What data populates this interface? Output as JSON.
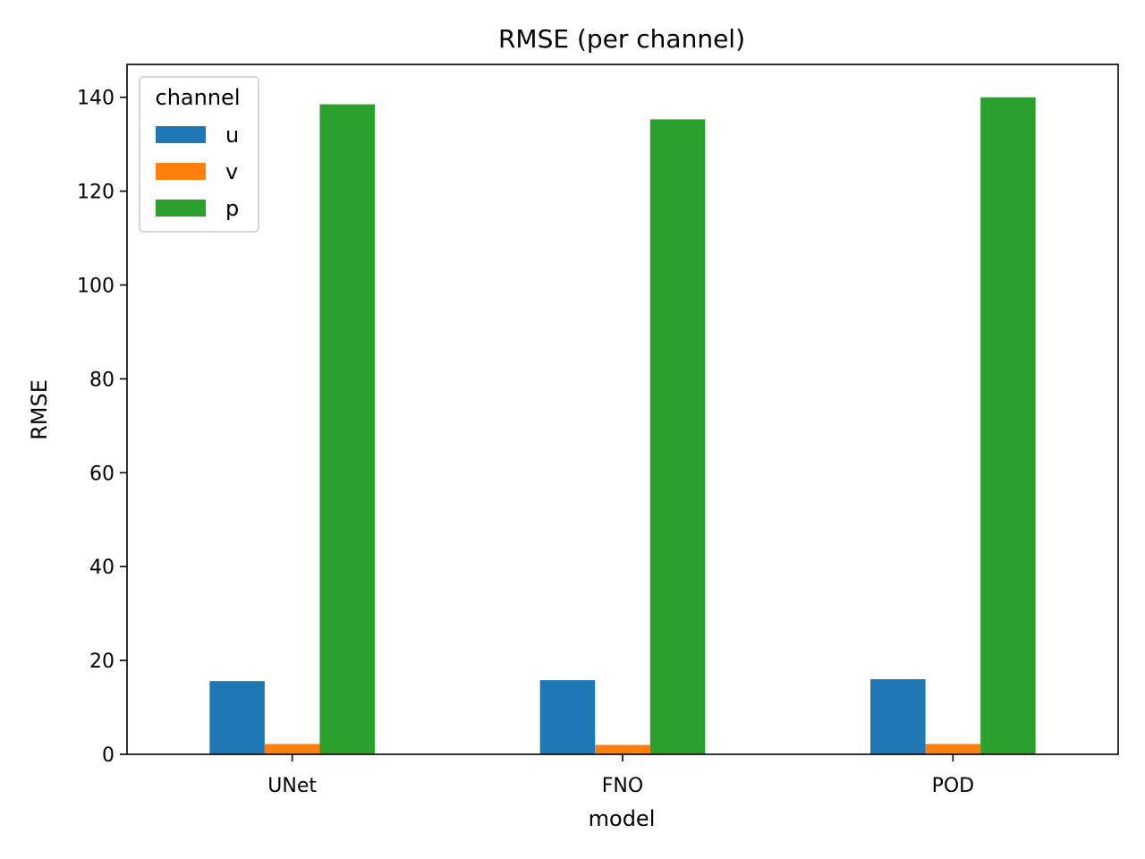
{
  "chart_data": {
    "type": "bar",
    "title": "RMSE (per channel)",
    "xlabel": "model",
    "ylabel": "RMSE",
    "categories": [
      "UNet",
      "FNO",
      "POD"
    ],
    "series": [
      {
        "name": "u",
        "color": "#1f77b4",
        "values": [
          15.6,
          15.8,
          16.0
        ]
      },
      {
        "name": "v",
        "color": "#ff7f0e",
        "values": [
          2.2,
          2.0,
          2.2
        ]
      },
      {
        "name": "p",
        "color": "#2ca02c",
        "values": [
          138.5,
          135.3,
          140.0
        ]
      }
    ],
    "ylim": [
      0,
      147
    ],
    "yticks": [
      0,
      20,
      40,
      60,
      80,
      100,
      120,
      140
    ],
    "grid": false,
    "legend": {
      "title": "channel",
      "placement": "top-left"
    }
  }
}
